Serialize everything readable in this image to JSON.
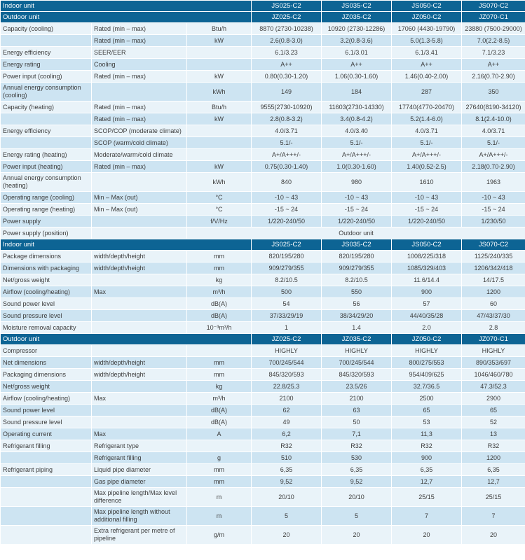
{
  "colors": {
    "header_bg": "#0d6494",
    "row_light": "#e9f3f9",
    "row_blue": "#cde4f2",
    "text": "#3d3d3d",
    "header_text": "#ffffff",
    "border": "#ffffff"
  },
  "table": {
    "blocks": [
      {
        "type": "header",
        "label": "Indoor unit",
        "models": [
          "JS025-C2",
          "JS035-C2",
          "JS050-C2",
          "JS070-C2"
        ]
      },
      {
        "type": "header",
        "label": "Outdoor unit",
        "models": [
          "JZ025-C2",
          "JZ035-C2",
          "JZ050-C2",
          "JZ070-C1"
        ]
      },
      {
        "type": "row",
        "label": "Capacity (cooling)",
        "sub": "Rated (min – max)",
        "unit": "Btu/h",
        "values": [
          "8870 (2730-10238)",
          "10920 (2730-12286)",
          "17060 (4430-19790)",
          "23880 (7500-29000)"
        ]
      },
      {
        "type": "row",
        "label": "",
        "sub": "Rated (min – max)",
        "unit": "kW",
        "values": [
          "2.6(0.8-3.0)",
          "3.2(0.8-3.6)",
          "5.0(1.3-5.8)",
          "7.0(2.2-8.5)"
        ]
      },
      {
        "type": "row",
        "label": "Energy efficiency",
        "sub": "SEER/EER",
        "unit": "",
        "values": [
          "6.1/3.23",
          "6.1/3.01",
          "6.1/3.41",
          "7.1/3.23"
        ]
      },
      {
        "type": "row",
        "label": "Energy rating",
        "sub": "Cooling",
        "unit": "",
        "values": [
          "A++",
          "A++",
          "A++",
          "A++"
        ]
      },
      {
        "type": "row",
        "label": "Power input (cooling)",
        "sub": "Rated (min – max)",
        "unit": "kW",
        "values": [
          "0.80(0.30-1.20)",
          "1.06(0.30-1.60)",
          "1.46(0.40-2.00)",
          "2.16(0.70-2.90)"
        ]
      },
      {
        "type": "row",
        "label": "Annual energy consumption (cooling)",
        "sub": "",
        "unit": "kWh",
        "values": [
          "149",
          "184",
          "287",
          "350"
        ]
      },
      {
        "type": "row",
        "label": "Capacity (heating)",
        "sub": "Rated (min – max)",
        "unit": "Btu/h",
        "values": [
          "9555(2730-10920)",
          "11603(2730-14330)",
          "17740(4770-20470)",
          "27640(8190-34120)"
        ]
      },
      {
        "type": "row",
        "label": "",
        "sub": "Rated (min – max)",
        "unit": "kW",
        "values": [
          "2.8(0.8-3.2)",
          "3.4(0.8-4.2)",
          "5.2(1.4-6.0)",
          "8.1(2.4-10.0)"
        ]
      },
      {
        "type": "row",
        "label": "Energy efficiency",
        "sub": "SCOP/COP (moderate climate)",
        "unit": "",
        "values": [
          "4.0/3.71",
          "4.0/3.40",
          "4.0/3.71",
          "4.0/3.71"
        ]
      },
      {
        "type": "row",
        "label": "",
        "sub": "SCOP (warm/cold climate)",
        "unit": "",
        "values": [
          "5.1/-",
          "5.1/-",
          "5.1/-",
          "5.1/-"
        ]
      },
      {
        "type": "row",
        "label": "Energy rating (heating)",
        "sub": "Moderate/warm/cold climate",
        "unit": "",
        "values": [
          "A+/A+++/-",
          "A+/A+++/-",
          "A+/A+++/-",
          "A+/A+++/-"
        ]
      },
      {
        "type": "row",
        "label": "Power input (heating)",
        "sub": "Rated (min – max)",
        "unit": "kW",
        "values": [
          "0.75(0.30-1.40)",
          "1.0(0.30-1.60)",
          "1.40(0.52-2.5)",
          "2.18(0.70-2.90)"
        ]
      },
      {
        "type": "row",
        "label": "Annual energy consumption (heating)",
        "sub": "",
        "unit": "kWh",
        "values": [
          "840",
          "980",
          "1610",
          "1963"
        ]
      },
      {
        "type": "row",
        "label": "Operating range (cooling)",
        "sub": "Min – Max (out)",
        "unit": "°C",
        "values": [
          "-10 ~ 43",
          "-10 ~ 43",
          "-10 ~ 43",
          "-10 ~ 43"
        ]
      },
      {
        "type": "row",
        "label": "Operating range (heating)",
        "sub": "Min – Max (out)",
        "unit": "°C",
        "values": [
          "-15 ~ 24",
          "-15 ~ 24",
          "-15 ~ 24",
          "-15 ~ 24"
        ]
      },
      {
        "type": "row",
        "label": "Power supply",
        "sub": "",
        "unit": "f/V/Hz",
        "values": [
          "1/220-240/50",
          "1/220-240/50",
          "1/220-240/50",
          "1/230/50"
        ]
      },
      {
        "type": "span_row",
        "label": "Power supply (position)",
        "sub": "",
        "span_value": "Outdoor unit"
      },
      {
        "type": "header",
        "label": "Indoor unit",
        "models": [
          "JS025-C2",
          "JS035-C2",
          "JS050-C2",
          "JS070-C2"
        ]
      },
      {
        "type": "row",
        "label": "Package dimensions",
        "sub": "width/depth/height",
        "unit": "mm",
        "values": [
          "820/195/280",
          "820/195/280",
          "1008/225/318",
          "1125/240/335"
        ]
      },
      {
        "type": "row",
        "label": "Dimensions with packaging",
        "sub": "width/depth/height",
        "unit": "mm",
        "values": [
          "909/279/355",
          "909/279/355",
          "1085/329/403",
          "1206/342/418"
        ]
      },
      {
        "type": "row",
        "label": "Net/gross weight",
        "sub": "",
        "unit": "kg",
        "values": [
          "8.2/10.5",
          "8.2/10.5",
          "11.6/14.4",
          "14/17.5"
        ]
      },
      {
        "type": "row",
        "label": "Airflow (cooling/heating)",
        "sub": "Max",
        "unit": "m³/h",
        "values": [
          "500",
          "550",
          "900",
          "1200"
        ]
      },
      {
        "type": "row",
        "label": "Sound power level",
        "sub": "",
        "unit": "dB(A)",
        "values": [
          "54",
          "56",
          "57",
          "60"
        ]
      },
      {
        "type": "row",
        "label": "Sound pressure level",
        "sub": "",
        "unit": "dB(A)",
        "values": [
          "37/33/29/19",
          "38/34/29/20",
          "44/40/35/28",
          "47/43/37/30"
        ]
      },
      {
        "type": "row",
        "label": "Moisture removal capacity",
        "sub": "",
        "unit": "10⁻³m³/h",
        "values": [
          "1",
          "1.4",
          "2.0",
          "2.8"
        ]
      },
      {
        "type": "header",
        "label": "Outdoor unit",
        "models": [
          "JZ025-C2",
          "JZ035-C2",
          "JZ050-C2",
          "JZ070-C1"
        ]
      },
      {
        "type": "row",
        "label": "Compressor",
        "sub": "",
        "unit": "",
        "values": [
          "HIGHLY",
          "HIGHLY",
          "HIGHLY",
          "HIGHLY"
        ]
      },
      {
        "type": "row",
        "label": "Net dimensions",
        "sub": "width/depth/height",
        "unit": "mm",
        "values": [
          "700/245/544",
          "700/245/544",
          "800/275/553",
          "890/353/697"
        ]
      },
      {
        "type": "row",
        "label": "Packaging dimensions",
        "sub": "width/depth/height",
        "unit": "mm",
        "values": [
          "845/320/593",
          "845/320/593",
          "954/409/625",
          "1046/460/780"
        ]
      },
      {
        "type": "row",
        "label": "Net/gross weight",
        "sub": "",
        "unit": "kg",
        "values": [
          "22.8/25.3",
          "23.5/26",
          "32.7/36.5",
          "47.3/52.3"
        ]
      },
      {
        "type": "row",
        "label": "Airflow (cooling/heating)",
        "sub": "Max",
        "unit": "m³/h",
        "values": [
          "2100",
          "2100",
          "2500",
          "2900"
        ]
      },
      {
        "type": "row",
        "label": "Sound power level",
        "sub": "",
        "unit": "dB(A)",
        "values": [
          "62",
          "63",
          "65",
          "65"
        ]
      },
      {
        "type": "row",
        "label": "Sound pressure level",
        "sub": "",
        "unit": "dB(A)",
        "values": [
          "49",
          "50",
          "53",
          "52"
        ]
      },
      {
        "type": "row",
        "label": "Operating current",
        "sub": "Max",
        "unit": "A",
        "values": [
          "6,2",
          "7,1",
          "11,3",
          "13"
        ]
      },
      {
        "type": "row",
        "label": "Refrigerant filling",
        "sub": "Refrigerant type",
        "unit": "",
        "values": [
          "R32",
          "R32",
          "R32",
          "R32"
        ]
      },
      {
        "type": "row",
        "label": "",
        "sub": "Refrigerant filling",
        "unit": "g",
        "values": [
          "510",
          "530",
          "900",
          "1200"
        ]
      },
      {
        "type": "row",
        "label": "Refrigerant piping",
        "sub": "Liquid pipe diameter",
        "unit": "mm",
        "values": [
          "6,35",
          "6,35",
          "6,35",
          "6,35"
        ]
      },
      {
        "type": "row",
        "label": "",
        "sub": "Gas pipe diameter",
        "unit": "mm",
        "values": [
          "9,52",
          "9,52",
          "12,7",
          "12,7"
        ]
      },
      {
        "type": "row",
        "label": "",
        "sub": "Max pipeline length/Max level difference",
        "unit": "m",
        "values": [
          "20/10",
          "20/10",
          "25/15",
          "25/15"
        ]
      },
      {
        "type": "row",
        "label": "",
        "sub": "Max pipeline length without additional filling",
        "unit": "m",
        "values": [
          "5",
          "5",
          "7",
          "7"
        ]
      },
      {
        "type": "row",
        "label": "",
        "sub": "Extra refrigerant per metre of pipeline",
        "unit": "g/m",
        "values": [
          "20",
          "20",
          "20",
          "20"
        ]
      }
    ]
  }
}
